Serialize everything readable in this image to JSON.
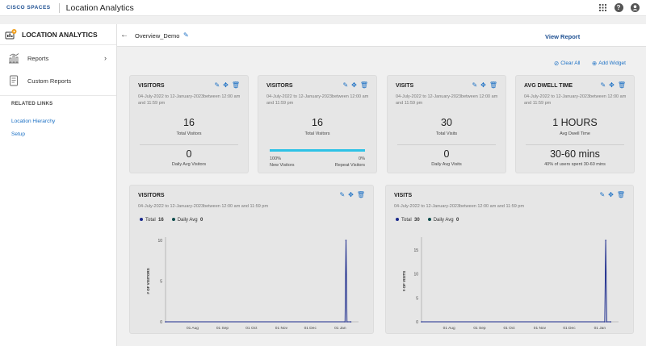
{
  "header": {
    "brand": "CISCO SPACES",
    "app_title": "Location Analytics",
    "icons": [
      "apps-grid-icon",
      "help-icon",
      "user-icon"
    ]
  },
  "sidebar": {
    "title": "LOCATION ANALYTICS",
    "items": [
      {
        "label": "Reports",
        "icon": "bar-chart-icon"
      },
      {
        "label": "Custom Reports",
        "icon": "document-icon"
      }
    ],
    "related_title": "RELATED LINKS",
    "links": [
      "Location Hierarchy",
      "Setup"
    ]
  },
  "subheader": {
    "back": "←",
    "name": "Overview_Demo",
    "view_report": "View Report"
  },
  "toolbar": {
    "clear_all": "Clear All",
    "add_widget": "Add Widget"
  },
  "cards": [
    {
      "title": "VISITORS",
      "date": "04-July-2022 to 12-January-2023between 12:00 am and 11:59 pm",
      "value": "16",
      "value_label": "Total Visitors",
      "value2": "0",
      "value2_label": "Daily Avg Visitors"
    },
    {
      "title": "VISITORS",
      "date": "04-July-2022 to 12-January-2023between 12:00 am and 11:59 pm",
      "value": "16",
      "value_label": "Total Visitors",
      "new_pct": "100%",
      "new_label": "New Visitors",
      "repeat_pct": "0%",
      "repeat_label": "Repeat Visitors",
      "new_fraction": 1.0
    },
    {
      "title": "VISITS",
      "date": "04-July-2022 to 12-January-2023between 12:00 am and 11:59 pm",
      "value": "30",
      "value_label": "Total Visits",
      "value2": "0",
      "value2_label": "Daily Avg Visits"
    },
    {
      "title": "AVG DWELL TIME",
      "date": "04-July-2022 to 12-January-2023between 12:00 am and 11:59 pm",
      "value": "1 HOURS",
      "value_label": "Avg Dwell Time",
      "value2": "30-60 mins",
      "value2_label": "40% of users spent 30-60 mins"
    }
  ],
  "charts": [
    {
      "title": "VISITORS",
      "date": "04-July-2022 to 12-January-2023between 12:00 am and 11:59 pm",
      "legend_total_label": "Total",
      "legend_total": "16",
      "legend_avg_label": "Daily Avg",
      "legend_avg": "0",
      "ylabel": "# OF VISITORS"
    },
    {
      "title": "VISITS",
      "date": "04-July-2022 to 12-January-2023between 12:00 am and 11:59 pm",
      "legend_total_label": "Total",
      "legend_total": "30",
      "legend_avg_label": "Daily Avg",
      "legend_avg": "0",
      "ylabel": "# OF VISITS"
    }
  ],
  "chart_data": [
    {
      "type": "line",
      "ylabel": "# OF VISITORS",
      "ylim": [
        0,
        10
      ],
      "yticks": [
        0,
        5,
        10
      ],
      "xticks": [
        "01 Aug",
        "01 Sep",
        "01 Oct",
        "01 Nov",
        "01 Dec",
        "01 Jan"
      ],
      "series": [
        {
          "name": "Total",
          "x": [
            "2022-07-04",
            "2023-01-06",
            "2023-01-07",
            "2023-01-08",
            "2023-01-12"
          ],
          "values": [
            0,
            0,
            10,
            0,
            0
          ]
        }
      ]
    },
    {
      "type": "line",
      "ylabel": "# OF VISITS",
      "ylim": [
        0,
        17
      ],
      "yticks": [
        0,
        5,
        10,
        15
      ],
      "xticks": [
        "01 Aug",
        "01 Sep",
        "01 Oct",
        "01 Nov",
        "01 Dec",
        "01 Jan"
      ],
      "series": [
        {
          "name": "Total",
          "x": [
            "2022-07-04",
            "2023-01-06",
            "2023-01-07",
            "2023-01-08",
            "2023-01-12"
          ],
          "values": [
            0,
            0,
            17,
            0,
            0
          ]
        }
      ]
    }
  ],
  "colors": {
    "accent": "#1a6fc4",
    "progress": "#2ec2e6",
    "series": "#1b2a8c"
  }
}
